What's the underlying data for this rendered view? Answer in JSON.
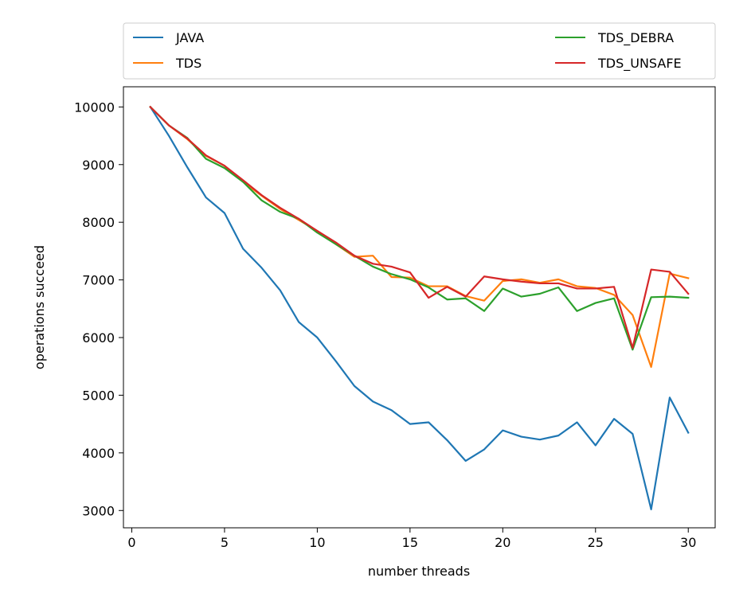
{
  "chart_data": {
    "type": "line",
    "xlabel": "number threads",
    "ylabel": "operations succeed",
    "xlim": [
      -0.45,
      31.45
    ],
    "ylim": [
      2700,
      10350
    ],
    "xticks": [
      0,
      5,
      10,
      15,
      20,
      25,
      30
    ],
    "yticks": [
      3000,
      4000,
      5000,
      6000,
      7000,
      8000,
      9000,
      10000
    ],
    "grid": false,
    "legend_position": "top",
    "x": [
      1,
      2,
      3,
      4,
      5,
      6,
      7,
      8,
      9,
      10,
      11,
      12,
      13,
      14,
      15,
      16,
      17,
      18,
      19,
      20,
      21,
      22,
      23,
      24,
      25,
      26,
      27,
      28,
      29,
      30
    ],
    "series": [
      {
        "name": "JAVA",
        "color": "#1f77b4",
        "values": [
          10000,
          9500,
          8950,
          8430,
          8160,
          7540,
          7210,
          6820,
          6270,
          6000,
          5590,
          5160,
          4890,
          4740,
          4500,
          4530,
          4220,
          3860,
          4060,
          4390,
          4280,
          4230,
          4300,
          4530,
          4130,
          4590,
          4330,
          3020,
          4960,
          4350
        ]
      },
      {
        "name": "TDS",
        "color": "#ff7f0e",
        "values": [
          10000,
          9680,
          9440,
          9150,
          8980,
          8700,
          8460,
          8230,
          8040,
          7850,
          7620,
          7400,
          7420,
          7050,
          7040,
          6890,
          6890,
          6720,
          6640,
          6980,
          7010,
          6950,
          7010,
          6890,
          6860,
          6740,
          6390,
          5490,
          7110,
          7030
        ]
      },
      {
        "name": "TDS_DEBRA",
        "color": "#2ca02c",
        "values": [
          10000,
          9680,
          9460,
          9100,
          8940,
          8700,
          8380,
          8180,
          8060,
          7820,
          7620,
          7420,
          7230,
          7100,
          7010,
          6870,
          6660,
          6680,
          6460,
          6850,
          6710,
          6760,
          6870,
          6460,
          6600,
          6680,
          5790,
          6700,
          6710,
          6690
        ]
      },
      {
        "name": "TDS_UNSAFE",
        "color": "#d62728",
        "values": [
          10000,
          9680,
          9450,
          9160,
          8980,
          8730,
          8470,
          8250,
          8060,
          7850,
          7650,
          7420,
          7280,
          7230,
          7130,
          6690,
          6880,
          6710,
          7060,
          7010,
          6970,
          6940,
          6940,
          6850,
          6850,
          6880,
          5820,
          7180,
          7140,
          6760
        ]
      }
    ]
  }
}
